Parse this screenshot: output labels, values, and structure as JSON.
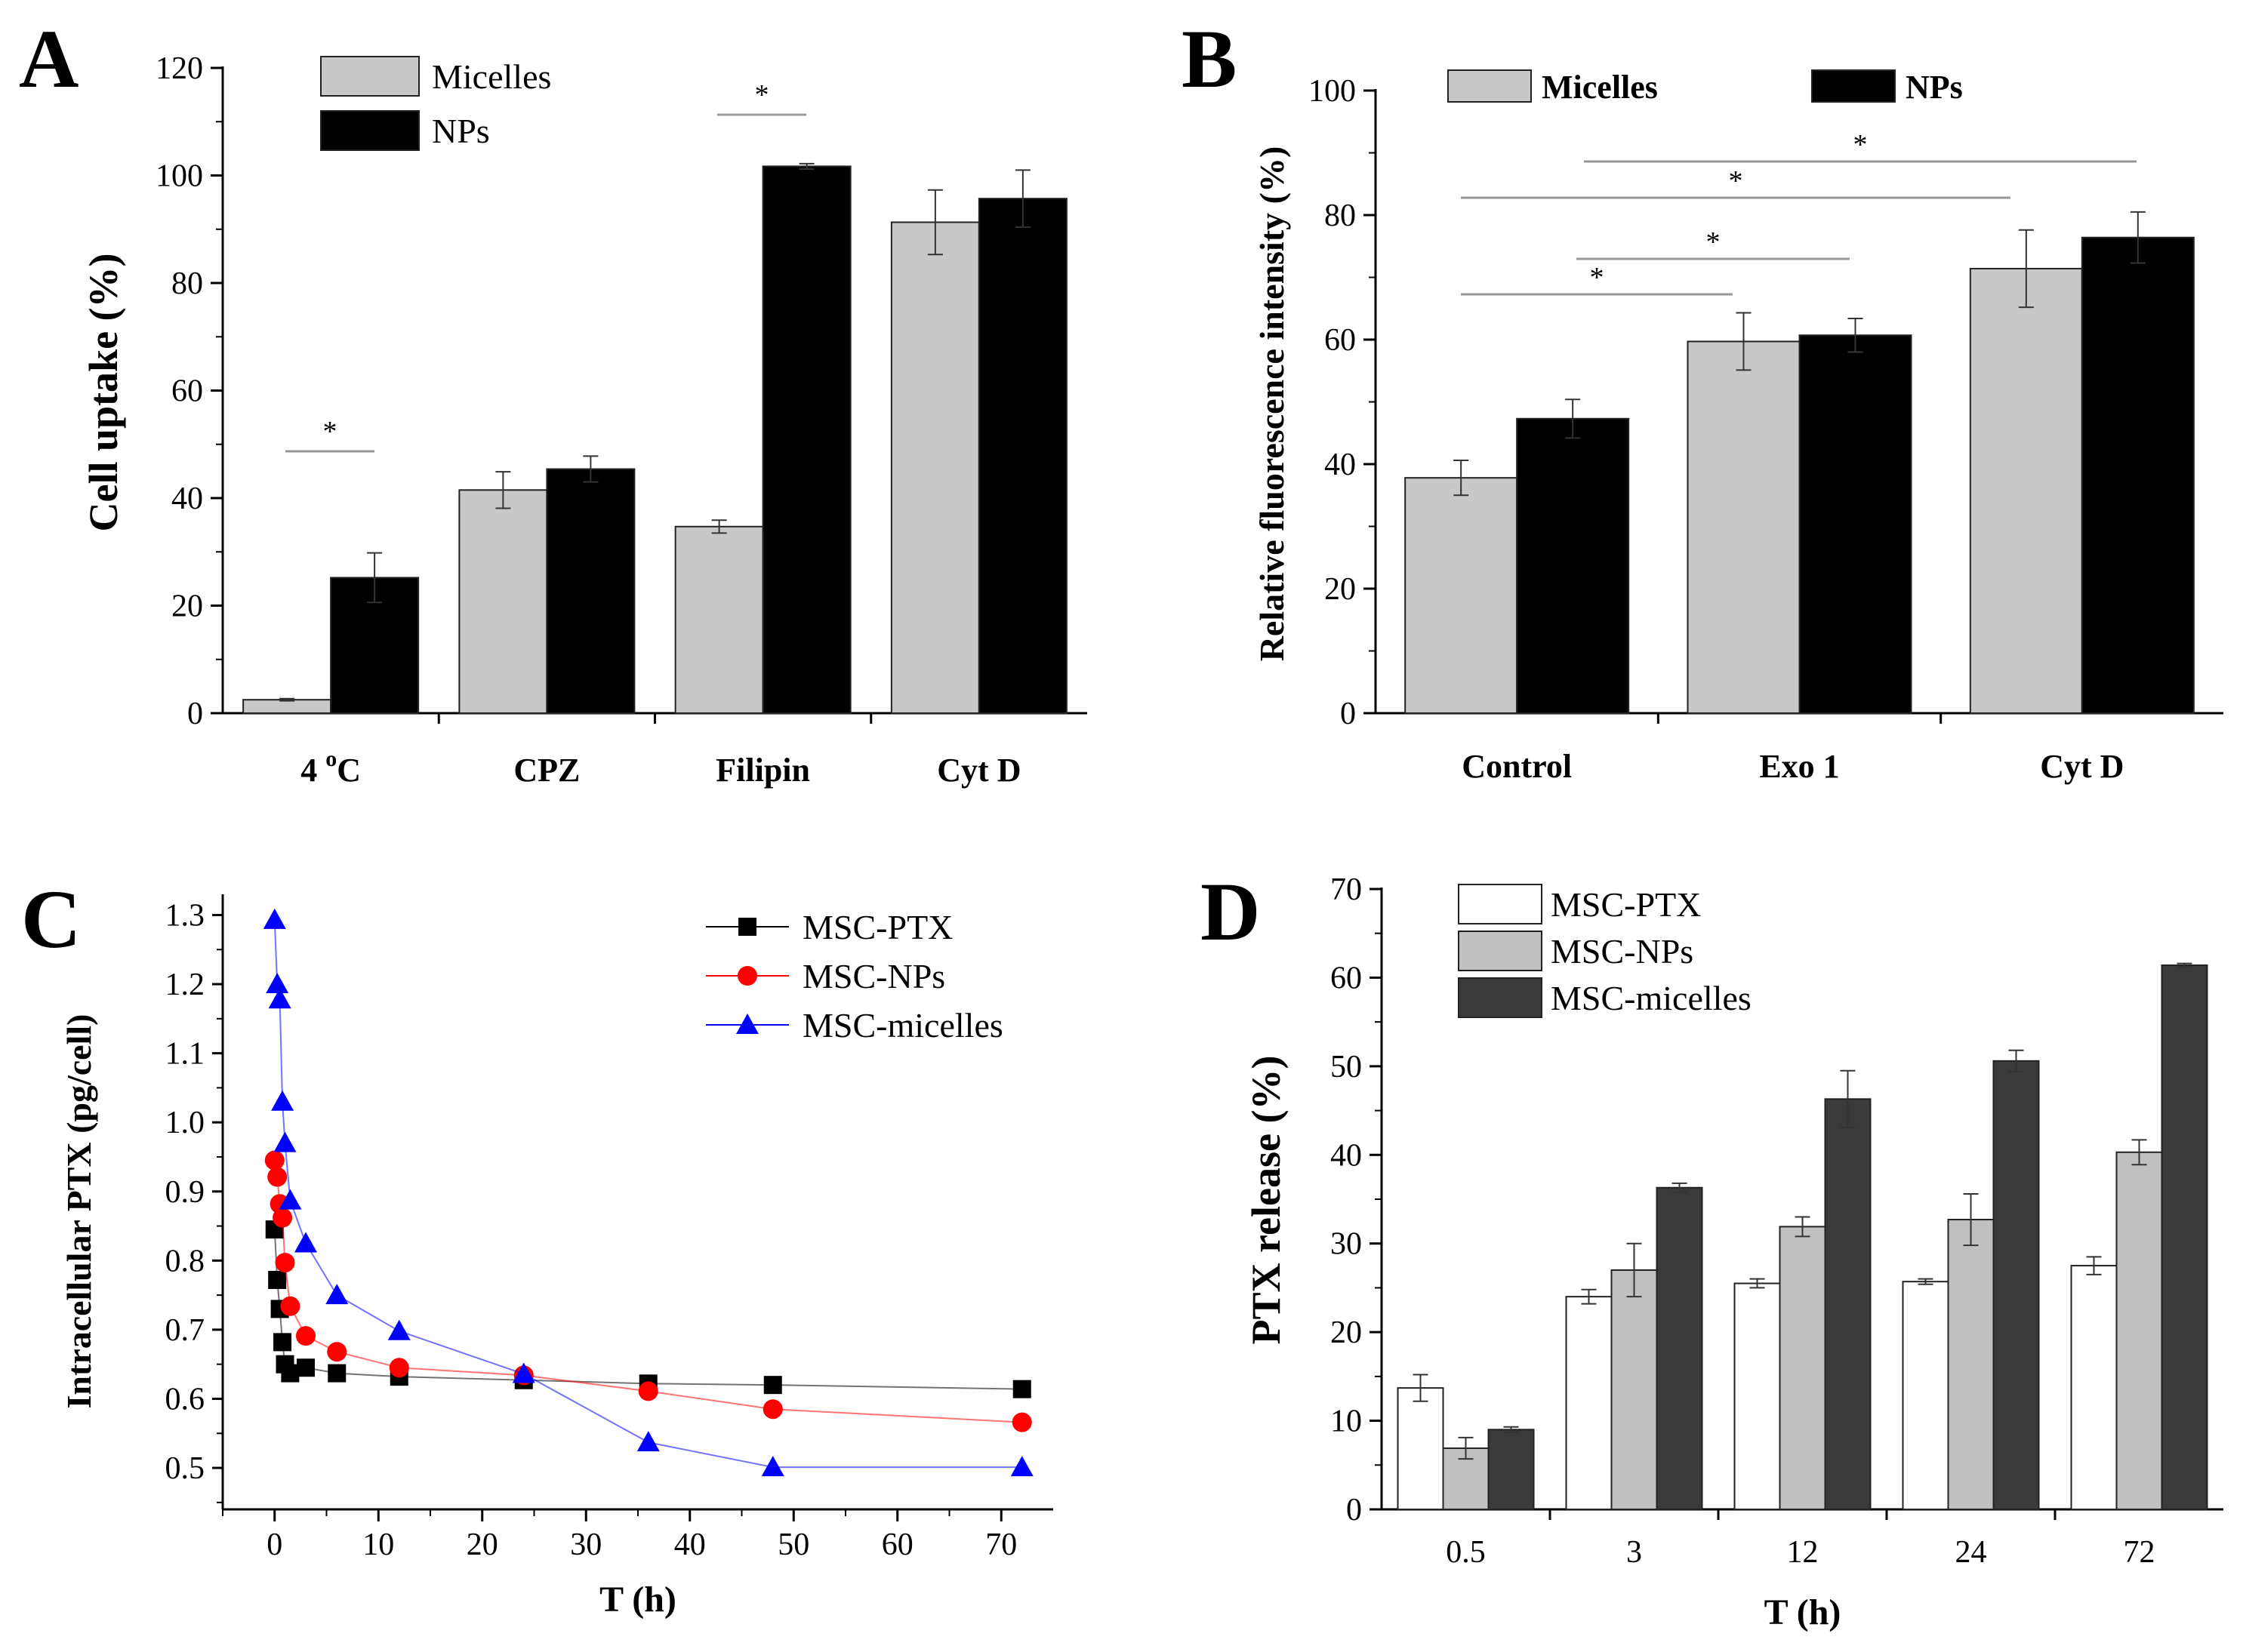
{
  "chart_data": [
    {
      "panel": "A",
      "type": "bar",
      "ylabel": "Cell uptake (%)",
      "xlabel": "",
      "ylim": [
        0,
        120
      ],
      "yticks": [
        0,
        20,
        40,
        60,
        80,
        100,
        120
      ],
      "categories": [
        "4 °C",
        "CPZ",
        "Filipin",
        "Cyt D"
      ],
      "category_parts": [
        {
          "base": "4 ",
          "sup": "o",
          "rest": "C"
        },
        {
          "base": "CPZ"
        },
        {
          "base": "Filipin"
        },
        {
          "base": "Cyt D"
        }
      ],
      "series": [
        {
          "name": "Micelles",
          "color": "#c8c8c8",
          "values": [
            2.5,
            41.5,
            34.7,
            91.3
          ],
          "errors": [
            0.2,
            3.4,
            1.2,
            6.0
          ]
        },
        {
          "name": "NPs",
          "color": "#000000",
          "values": [
            25.2,
            45.4,
            101.7,
            95.7
          ],
          "errors": [
            4.6,
            2.4,
            0.5,
            5.3
          ]
        }
      ],
      "legend_position": "top-left",
      "significance": [
        {
          "label": "*",
          "category": 0
        },
        {
          "label": "*",
          "category": 2
        }
      ]
    },
    {
      "panel": "B",
      "type": "bar",
      "ylabel": "Relative fluorescence intensity (%)",
      "xlabel": "",
      "ylim": [
        0,
        100
      ],
      "yticks": [
        0,
        20,
        40,
        60,
        80,
        100
      ],
      "categories": [
        "Control",
        "Exo 1",
        "Cyt D"
      ],
      "series": [
        {
          "name": "Micelles",
          "color": "#c8c8c8",
          "values": [
            37.8,
            59.7,
            71.4
          ],
          "errors": [
            2.8,
            4.6,
            6.2
          ]
        },
        {
          "name": "NPs",
          "color": "#000000",
          "values": [
            47.3,
            60.7,
            76.4
          ],
          "errors": [
            3.1,
            2.7,
            4.1
          ]
        }
      ],
      "legend_position": "top",
      "significance": [
        {
          "label": "*",
          "from": 0,
          "to": 1
        },
        {
          "label": "*",
          "from": 0.5,
          "to": 1.5
        },
        {
          "label": "*",
          "from": 0,
          "to": 2
        },
        {
          "label": "*",
          "from": 0.5,
          "to": 2.5
        }
      ]
    },
    {
      "panel": "C",
      "type": "line",
      "ylabel": "Intracellular PTX (pg/cell)",
      "xlabel": "T (h)",
      "xlim": [
        -5,
        75
      ],
      "ylim": [
        0.44,
        1.33
      ],
      "xticks": [
        0,
        10,
        20,
        30,
        40,
        50,
        60,
        70
      ],
      "yticks": [
        0.5,
        0.6,
        0.7,
        0.8,
        0.9,
        1.0,
        1.1,
        1.2,
        1.3
      ],
      "ytick_labels": [
        "0.5",
        "0.6",
        "0.7",
        "0.8",
        "0.9",
        "1.0",
        "1.1",
        "1.2",
        "1.3"
      ],
      "series": [
        {
          "name": "MSC-PTX",
          "color": "#000000",
          "marker": "square",
          "x": [
            0,
            0.25,
            0.5,
            0.75,
            1,
            1.5,
            3,
            6,
            12,
            24,
            36,
            48,
            72
          ],
          "y": [
            0.845,
            0.772,
            0.73,
            0.682,
            0.65,
            0.637,
            0.645,
            0.637,
            0.632,
            0.627,
            0.622,
            0.62,
            0.614
          ]
        },
        {
          "name": "MSC-NPs",
          "color": "#ff0000",
          "marker": "circle",
          "x": [
            0,
            0.25,
            0.5,
            0.75,
            1,
            1.5,
            3,
            6,
            12,
            24,
            36,
            48,
            72
          ],
          "y": [
            0.945,
            0.921,
            0.882,
            0.862,
            0.797,
            0.734,
            0.691,
            0.668,
            0.645,
            0.634,
            0.611,
            0.585,
            0.566
          ]
        },
        {
          "name": "MSC-micelles",
          "color": "#0000ff",
          "marker": "triangle",
          "x": [
            0,
            0.25,
            0.5,
            0.75,
            1,
            1.5,
            3,
            6,
            12,
            24,
            36,
            48,
            72
          ],
          "y": [
            1.293,
            1.2,
            1.178,
            1.03,
            0.97,
            0.887,
            0.825,
            0.75,
            0.698,
            0.636,
            0.537,
            0.501,
            0.501
          ]
        }
      ],
      "legend_position": "top-right"
    },
    {
      "panel": "D",
      "type": "bar",
      "ylabel": "PTX release (%)",
      "xlabel": "T (h)",
      "ylim": [
        0,
        70
      ],
      "yticks": [
        0,
        10,
        20,
        30,
        40,
        50,
        60,
        70
      ],
      "categories": [
        "0.5",
        "3",
        "12",
        "24",
        "72"
      ],
      "series": [
        {
          "name": "MSC-PTX",
          "color": "#ffffff",
          "values": [
            13.7,
            24.0,
            25.5,
            25.7,
            27.5
          ],
          "errors": [
            1.5,
            0.8,
            0.5,
            0.3,
            1.0
          ]
        },
        {
          "name": "MSC-NPs",
          "color": "#c0c0c0",
          "values": [
            6.9,
            27.0,
            31.9,
            32.7,
            40.3
          ],
          "errors": [
            1.2,
            3.0,
            1.1,
            2.9,
            1.4
          ]
        },
        {
          "name": "MSC-micelles",
          "color": "#3a3a3a",
          "values": [
            9.0,
            36.3,
            46.3,
            50.6,
            61.4
          ],
          "errors": [
            0.3,
            0.5,
            3.2,
            1.2,
            0.2
          ]
        }
      ],
      "legend_position": "top-left"
    }
  ],
  "panels": {
    "A": {
      "letter": "A"
    },
    "B": {
      "letter": "B"
    },
    "C": {
      "letter": "C"
    },
    "D": {
      "letter": "D"
    }
  }
}
